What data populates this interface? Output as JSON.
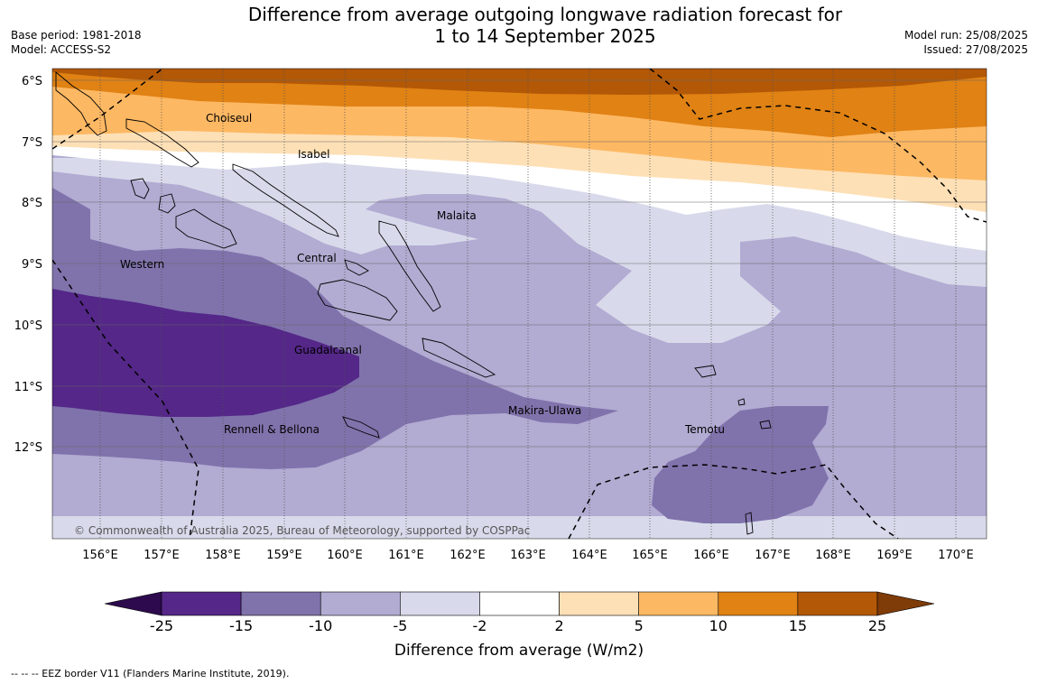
{
  "header": {
    "title_line1": "Difference from average outgoing longwave radiation forecast for",
    "title_line2": "1 to 14 September 2025",
    "base_period": "Base period: 1981-2018",
    "model": "Model: ACCESS-S2",
    "model_run": "Model run: 25/08/2025",
    "issued": "Issued: 27/08/2025"
  },
  "map": {
    "lat_labels": [
      "6°S",
      "7°S",
      "8°S",
      "9°S",
      "10°S",
      "11°S",
      "12°S"
    ],
    "lon_labels": [
      "156°E",
      "157°E",
      "158°E",
      "159°E",
      "160°E",
      "161°E",
      "162°E",
      "163°E",
      "164°E",
      "165°E",
      "166°E",
      "167°E",
      "168°E",
      "169°E",
      "170°E"
    ],
    "regions": {
      "choiseul": "Choiseul",
      "isabel": "Isabel",
      "malaita": "Malaita",
      "western": "Western",
      "central": "Central",
      "guadalcanal": "Guadalcanal",
      "makira": "Makira-Ulawa",
      "rennell": "Rennell & Bellona",
      "temotu": "Temotu"
    },
    "copyright": "© Commonwealth of Australia 2025, Bureau of Meteorology, supported by COSPPac"
  },
  "colorbar": {
    "ticks": [
      "-25",
      "-15",
      "-10",
      "-5",
      "-2",
      "2",
      "5",
      "10",
      "15",
      "25"
    ],
    "label": "Difference from average (W/m2)",
    "colors": [
      "#2d0a4e",
      "#542788",
      "#8073ac",
      "#b2abd2",
      "#d8daeb",
      "#ffffff",
      "#fee0b6",
      "#fdb863",
      "#e08214",
      "#b35806",
      "#7f3b08"
    ]
  },
  "footer": {
    "legend": "--  --  -- EEZ border V11 (Flanders Marine Institute, 2019)."
  }
}
